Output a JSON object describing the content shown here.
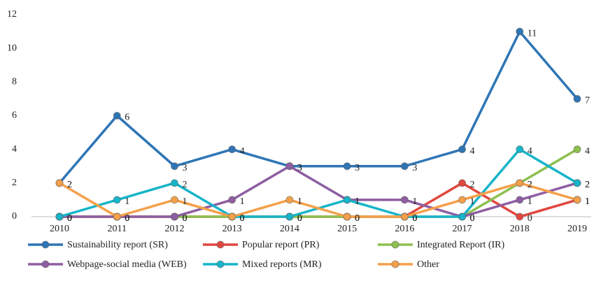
{
  "chart_data": {
    "type": "line",
    "categories": [
      "2010",
      "2011",
      "2012",
      "2013",
      "2014",
      "2015",
      "2016",
      "2017",
      "2018",
      "2019"
    ],
    "ylim": [
      0,
      12
    ],
    "yticks": [
      0,
      2,
      4,
      6,
      8,
      10,
      12
    ],
    "grid": false,
    "series": [
      {
        "name": "Sustainability report (SR)",
        "color": "#2e75b6",
        "values": [
          2,
          6,
          3,
          4,
          3,
          3,
          3,
          4,
          11,
          7
        ]
      },
      {
        "name": "Popular report (PR)",
        "color": "#e0473f",
        "values": [
          0,
          0,
          0,
          0,
          0,
          0,
          0,
          2,
          0,
          1
        ]
      },
      {
        "name": "Integrated Report (IR)",
        "color": "#8dc04f",
        "values": [
          0,
          0,
          0,
          0,
          0,
          0,
          0,
          0,
          2,
          4
        ]
      },
      {
        "name": "Webpage-social media (WEB)",
        "color": "#8e5ea2",
        "values": [
          0,
          0,
          0,
          1,
          3,
          1,
          1,
          0,
          1,
          2
        ]
      },
      {
        "name": "Mixed reports (MR)",
        "color": "#17b5c9",
        "values": [
          0,
          1,
          2,
          0,
          0,
          1,
          0,
          0,
          4,
          2
        ]
      },
      {
        "name": "Other",
        "color": "#f5a04a",
        "values": [
          2,
          0,
          1,
          0,
          1,
          0,
          0,
          1,
          2,
          1
        ]
      }
    ]
  }
}
